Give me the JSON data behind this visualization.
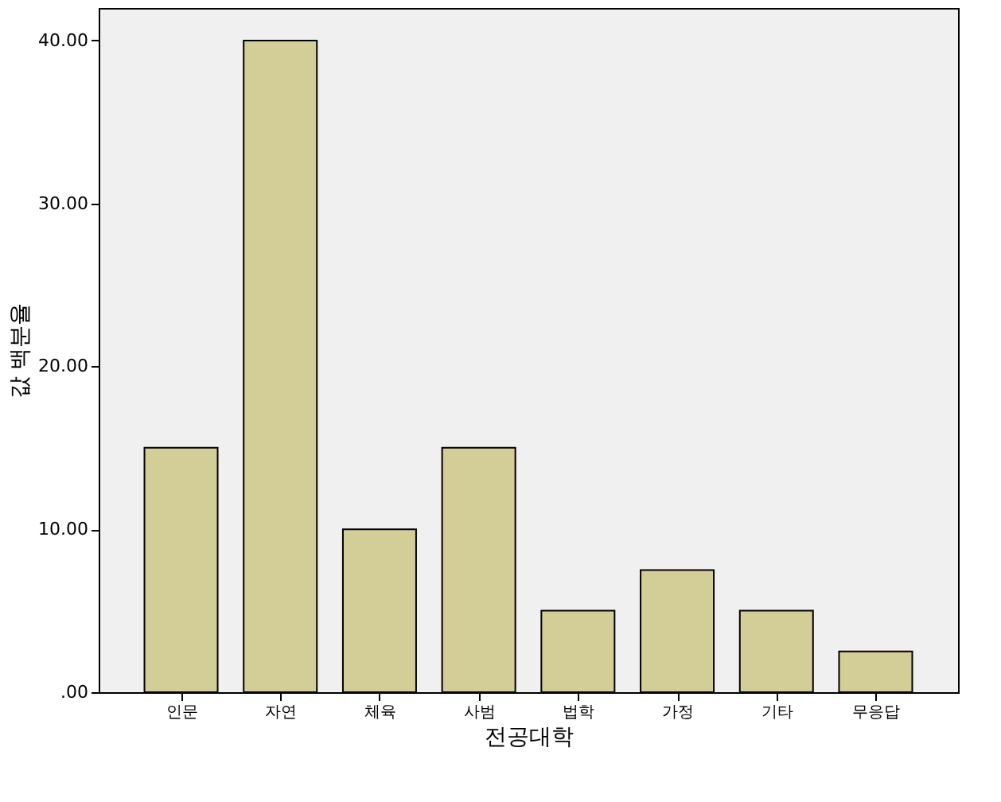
{
  "chart_data": {
    "type": "bar",
    "xlabel": "전공대학",
    "ylabel": "값 백분율",
    "categories": [
      "인문",
      "자연",
      "체육",
      "사범",
      "법학",
      "가정",
      "기타",
      "무응답"
    ],
    "values": [
      15,
      40,
      10,
      15,
      5,
      7.5,
      5,
      2.5
    ],
    "color": "#d3ce97",
    "ylim": [
      0,
      42
    ],
    "yticks": [
      {
        "value": 0,
        "label": ".00"
      },
      {
        "value": 10,
        "label": "10.00"
      },
      {
        "value": 20,
        "label": "20.00"
      },
      {
        "value": 30,
        "label": "30.00"
      },
      {
        "value": 40,
        "label": "40.00"
      }
    ],
    "grid": false
  }
}
